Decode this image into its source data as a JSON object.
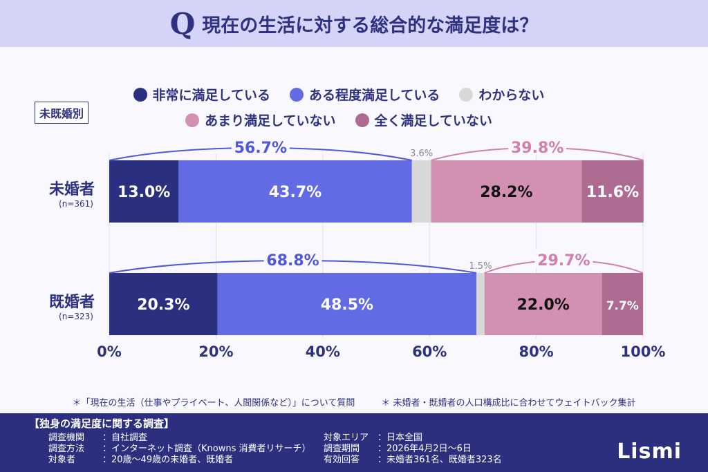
{
  "header": {
    "q": "Q",
    "title": "現在の生活に対する総合的な満足度は？"
  },
  "segment_label": "未既婚別",
  "colors": {
    "very_satisfied": "#2b2f80",
    "somewhat_satisfied": "#626be4",
    "dont_know": "#d8d8d8",
    "not_very": "#d291b3",
    "not_at_all": "#ad6b91",
    "positive_bracket": "#5058d8",
    "negative_bracket": "#d27fae"
  },
  "chart_data": {
    "type": "stacked-bar-horizontal",
    "legend": [
      "非常に満足している",
      "ある程度満足している",
      "わからない",
      "あまり満足していない",
      "全く満足していない"
    ],
    "categories": [
      {
        "label": "未婚者",
        "n": "(n=361)"
      },
      {
        "label": "既婚者",
        "n": "(n=323)"
      }
    ],
    "series": [
      {
        "name": "非常に満足している",
        "values": [
          13.0,
          20.3
        ]
      },
      {
        "name": "ある程度満足している",
        "values": [
          43.7,
          48.5
        ]
      },
      {
        "name": "わからない",
        "values": [
          3.6,
          1.5
        ]
      },
      {
        "name": "あまり満足していない",
        "values": [
          28.2,
          22.0
        ]
      },
      {
        "name": "全く満足していない",
        "values": [
          11.6,
          7.7
        ]
      }
    ],
    "positive_totals": [
      "56.7%",
      "68.8%"
    ],
    "negative_totals": [
      "39.8%",
      "29.7%"
    ],
    "xlim": [
      0,
      100
    ],
    "xticks": [
      "0%",
      "20%",
      "40%",
      "60%",
      "80%",
      "100%"
    ]
  },
  "notes": [
    "＊「現在の生活（仕事やプライベート、人間関係など）」について質問",
    "＊ 未婚者・既婚者の人口構成比に合わせてウェイトバック集計"
  ],
  "footer": {
    "title": "【独身の満足度に関する調査】",
    "left": [
      {
        "k": "調査機関",
        "v": "：自社調査"
      },
      {
        "k": "調査方法",
        "v": "：インターネット調査（Knowns 消費者リサーチ）"
      },
      {
        "k": "対象者",
        "v": "：20歳～49歳の未婚者、既婚者"
      }
    ],
    "right": [
      {
        "k": "対象エリア",
        "v": "：日本全国"
      },
      {
        "k": "調査期間",
        "v": "：2026年4月2日～6日"
      },
      {
        "k": "有効回答",
        "v": "：未婚者361名、既婚者323名"
      }
    ],
    "logo": "Lismi"
  }
}
